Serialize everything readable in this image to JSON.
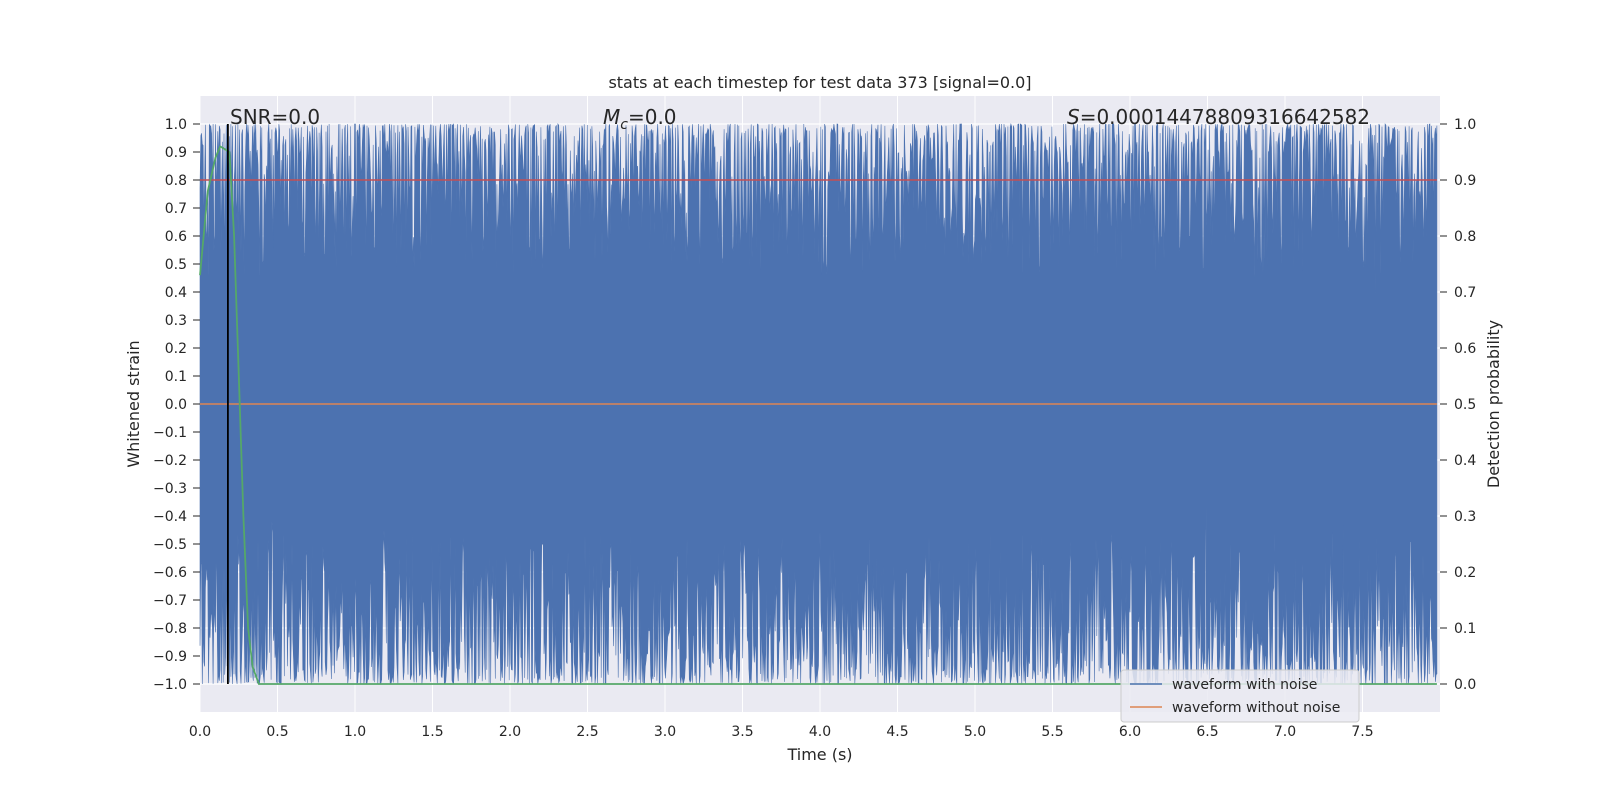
{
  "chart_data": {
    "type": "line",
    "title": "stats at each timestep for test data 373 [signal=0.0]",
    "xlabel": "Time (s)",
    "ylabel": "Whitened strain",
    "y2label": "Detection probability",
    "xlim": [
      0.0,
      8.0
    ],
    "ylim": [
      -1.1,
      1.1
    ],
    "y2lim": [
      -0.05,
      1.05
    ],
    "x_ticks": [
      "0.0",
      "0.5",
      "1.0",
      "1.5",
      "2.0",
      "2.5",
      "3.0",
      "3.5",
      "4.0",
      "4.5",
      "5.0",
      "5.5",
      "6.0",
      "6.5",
      "7.0",
      "7.5"
    ],
    "y_ticks": [
      "1.0",
      "0.9",
      "0.8",
      "0.7",
      "0.6",
      "0.5",
      "0.4",
      "0.3",
      "0.2",
      "0.1",
      "0.0",
      "−0.1",
      "−0.2",
      "−0.3",
      "−0.4",
      "−0.5",
      "−0.6",
      "−0.7",
      "−0.8",
      "−0.9",
      "−1.0"
    ],
    "y2_ticks": [
      "1.0",
      "0.9",
      "0.8",
      "0.7",
      "0.6",
      "0.5",
      "0.4",
      "0.3",
      "0.2",
      "0.1",
      "0.0"
    ],
    "grid": true,
    "legend_position": "lower-right",
    "annotations": {
      "snr_label": "SNR=0.0",
      "mc_symbol": "M",
      "mc_subscript": "c",
      "mc_value": "=0.0",
      "s_symbol": "S",
      "s_value": "=0.00014478809316642582"
    },
    "vertical_marker_x": 0.18,
    "series": [
      {
        "name": "waveform with noise",
        "color": "#4c72b0",
        "description_values": "dense noise filling approximately -1.0 to 1.0 across 0-8 s"
      },
      {
        "name": "waveform without noise",
        "color": "#dd8452",
        "y": 0.0
      },
      {
        "name": "",
        "axis": "right",
        "color": "#55a868",
        "x": [
          0.0,
          0.05,
          0.1,
          0.13,
          0.16,
          0.19,
          0.22,
          0.25,
          0.28,
          0.31,
          0.34,
          0.38,
          0.45,
          1.0,
          2.0,
          3.0,
          4.0,
          5.0,
          6.0,
          7.0,
          7.98
        ],
        "y": [
          0.73,
          0.88,
          0.94,
          0.96,
          0.955,
          0.95,
          0.8,
          0.55,
          0.3,
          0.1,
          0.03,
          0.0,
          0.0,
          0.0,
          0.0,
          0.0,
          0.0,
          0.0,
          0.0,
          0.0,
          0.0
        ]
      },
      {
        "name": "",
        "axis": "right",
        "color": "#c44e52",
        "y": 0.9
      }
    ]
  }
}
